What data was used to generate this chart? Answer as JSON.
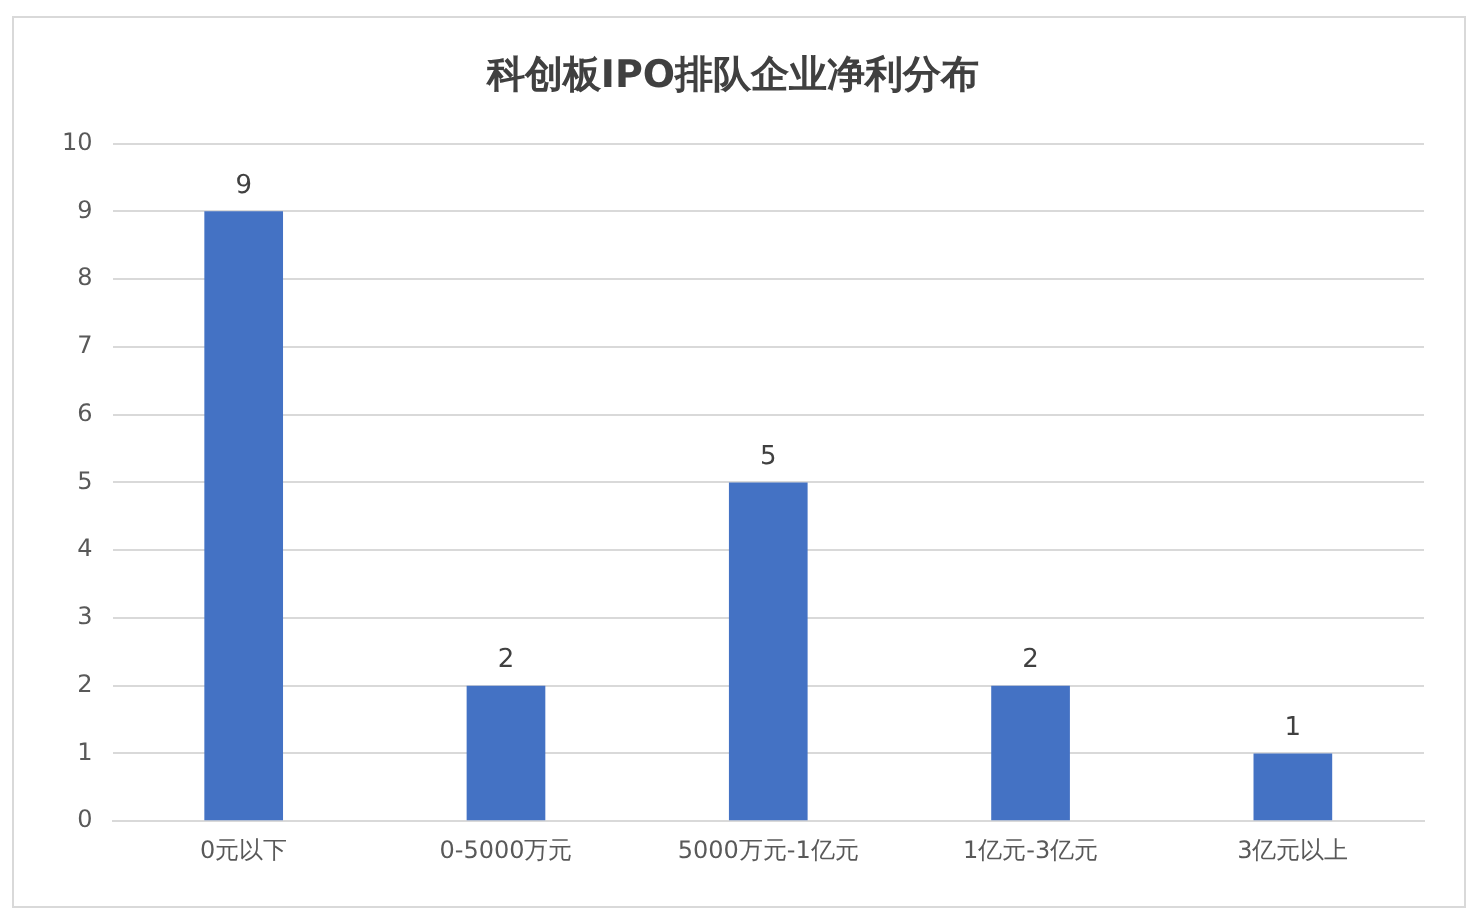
{
  "chart_data": {
    "type": "bar",
    "title": "科创板IPO排队企业净利分布",
    "categories": [
      "0元以下",
      "0-5000万元",
      "5000万元-1亿元",
      "1亿元-3亿元",
      "3亿元以上"
    ],
    "values": [
      9,
      2,
      5,
      2,
      1
    ],
    "color": "#4472c4",
    "ylim": [
      0,
      10
    ],
    "yticks": [
      0,
      1,
      2,
      3,
      4,
      5,
      6,
      7,
      8,
      9,
      10
    ],
    "grid": "y",
    "data_labels": true
  }
}
